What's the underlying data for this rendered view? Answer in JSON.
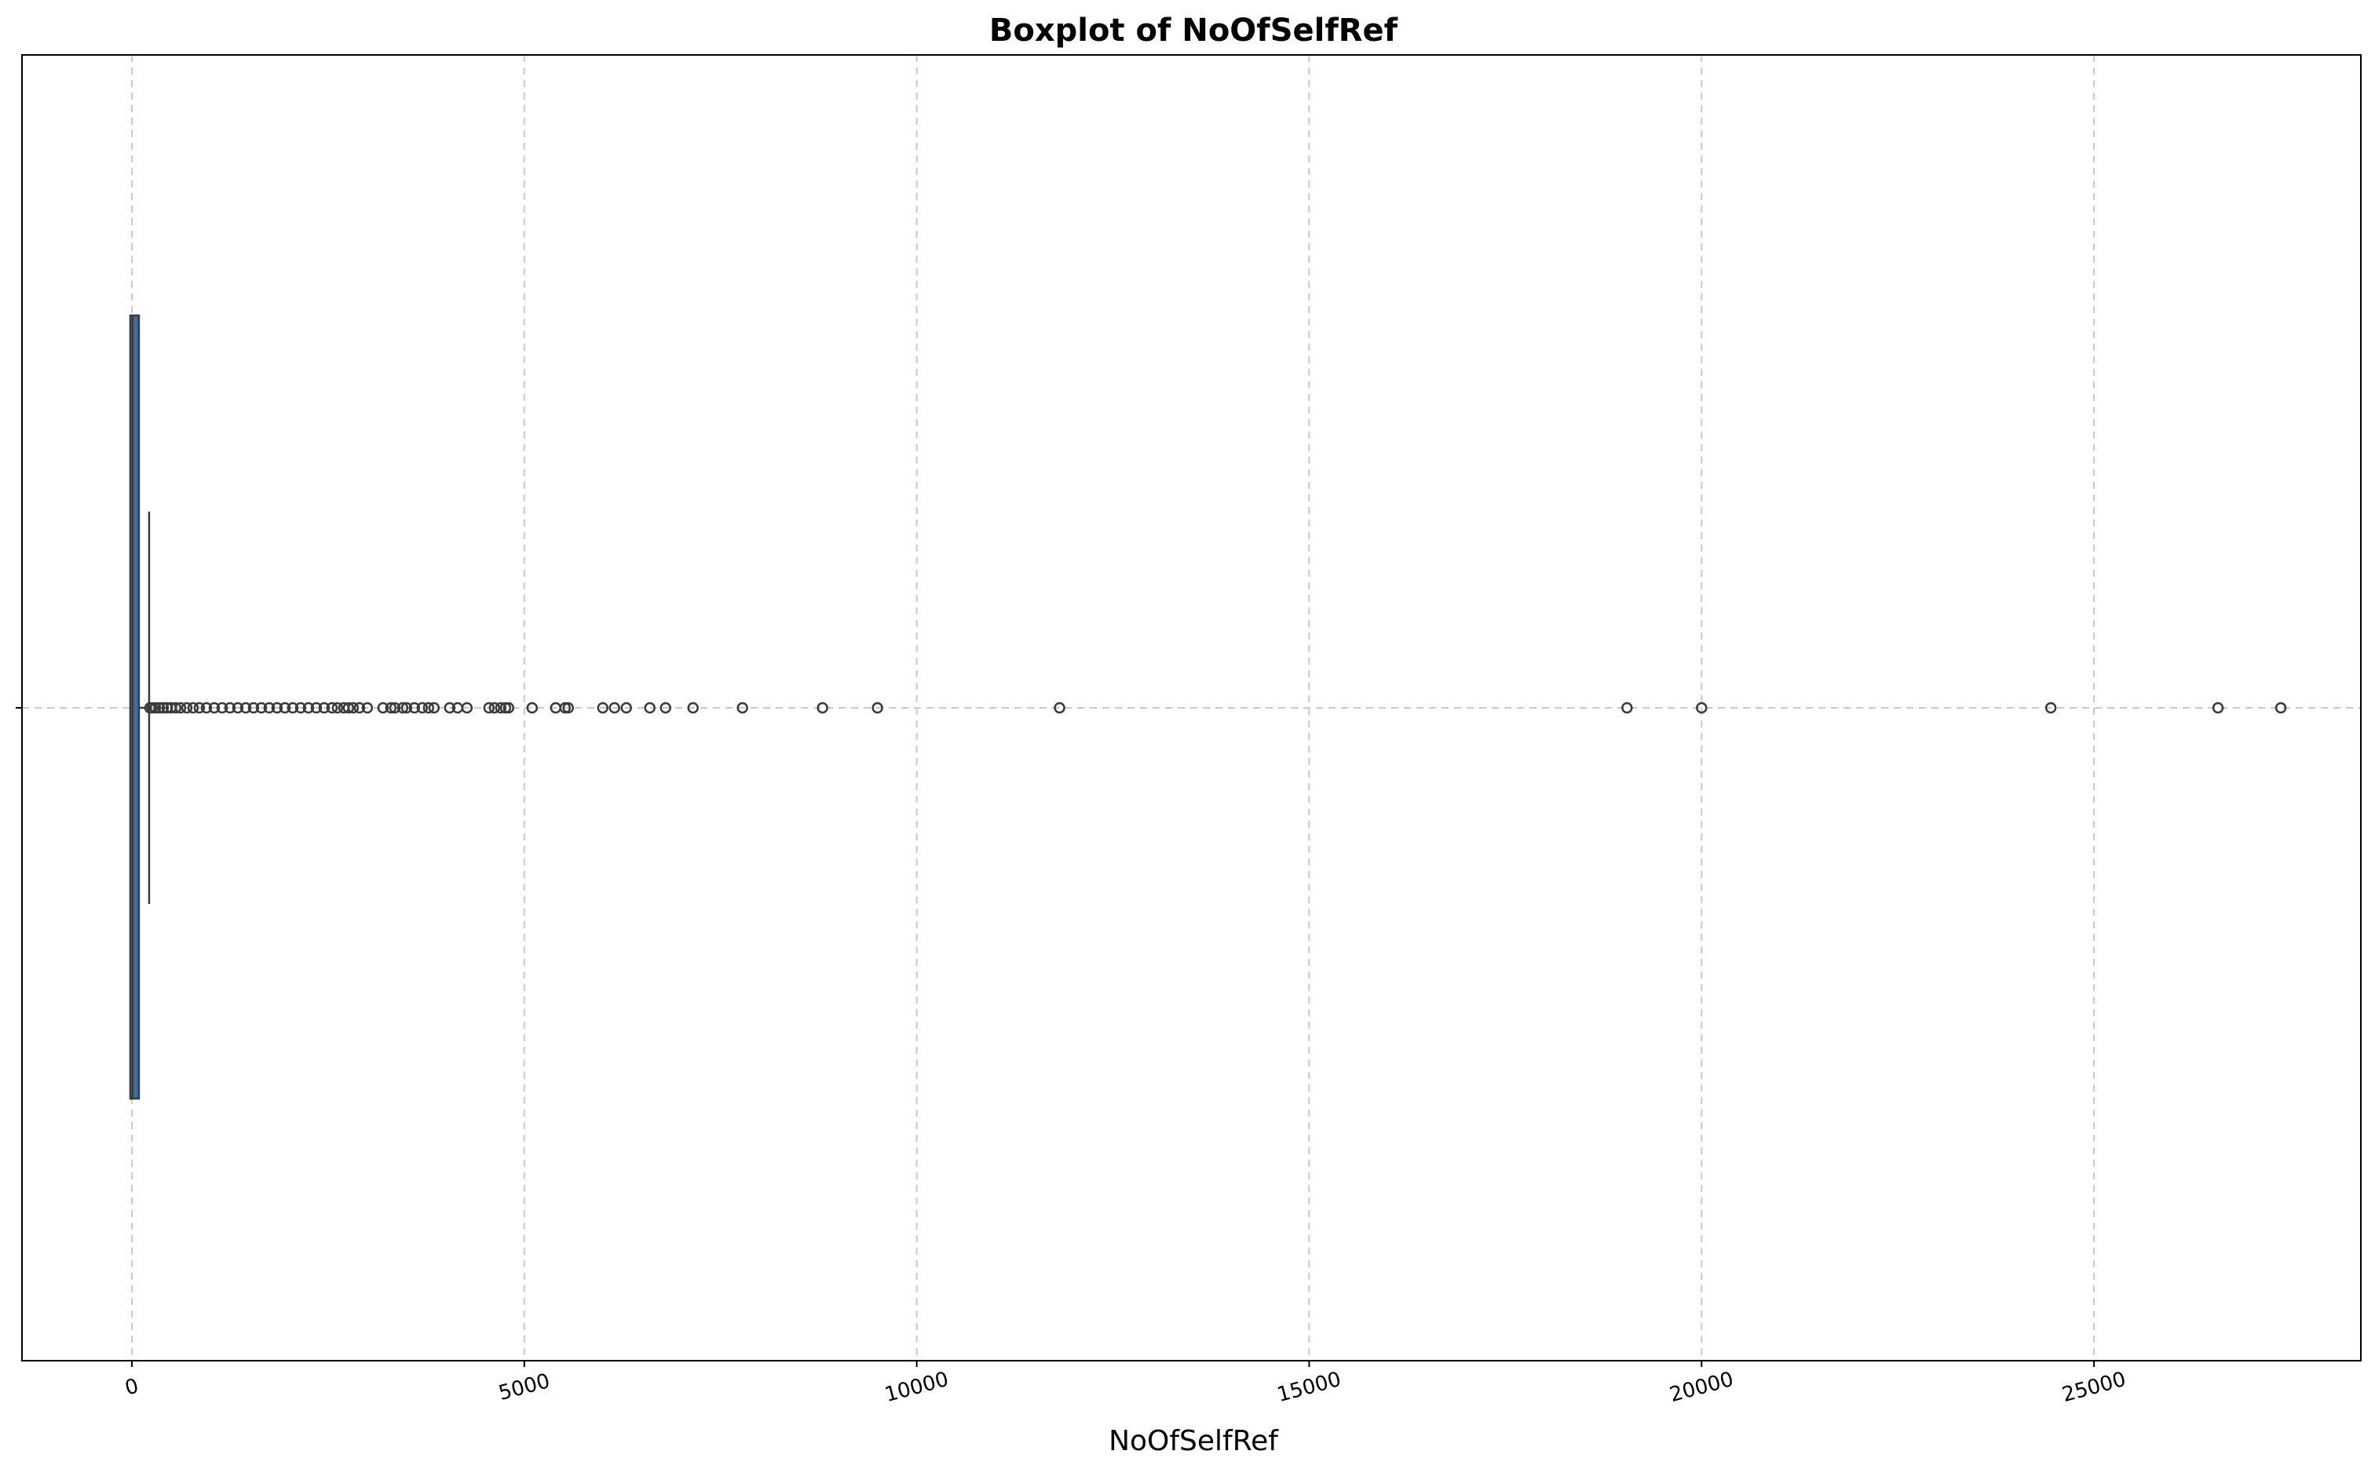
{
  "chart_data": {
    "type": "box",
    "title": "Boxplot of NoOfSelfRef",
    "xlabel": "NoOfSelfRef",
    "ylabel": "",
    "orientation": "horizontal",
    "xlim": [
      -1400,
      28400
    ],
    "xticks": [
      0,
      5000,
      10000,
      15000,
      20000,
      25000
    ],
    "xtick_labels": [
      "0",
      "5000",
      "10000",
      "15000",
      "20000",
      "25000"
    ],
    "grid": true,
    "box": {
      "color": "#3a6ea5",
      "min": 0,
      "q1": 0,
      "median": 10,
      "q3": 90,
      "whisker_low": 0,
      "whisker_high": 220
    },
    "outliers": [
      230,
      260,
      300,
      350,
      400,
      450,
      500,
      560,
      620,
      700,
      780,
      860,
      950,
      1050,
      1150,
      1250,
      1350,
      1450,
      1550,
      1650,
      1750,
      1850,
      1950,
      2050,
      2150,
      2250,
      2350,
      2450,
      2550,
      2620,
      2700,
      2760,
      2820,
      2900,
      3000,
      3200,
      3300,
      3350,
      3450,
      3500,
      3600,
      3700,
      3780,
      3850,
      4050,
      4150,
      4270,
      4550,
      4620,
      4700,
      4760,
      4800,
      5100,
      5400,
      5520,
      5560,
      6000,
      6150,
      6300,
      6600,
      6800,
      7150,
      7780,
      8800,
      9500,
      11820,
      19050,
      20000,
      24450,
      26580,
      27380
    ]
  }
}
